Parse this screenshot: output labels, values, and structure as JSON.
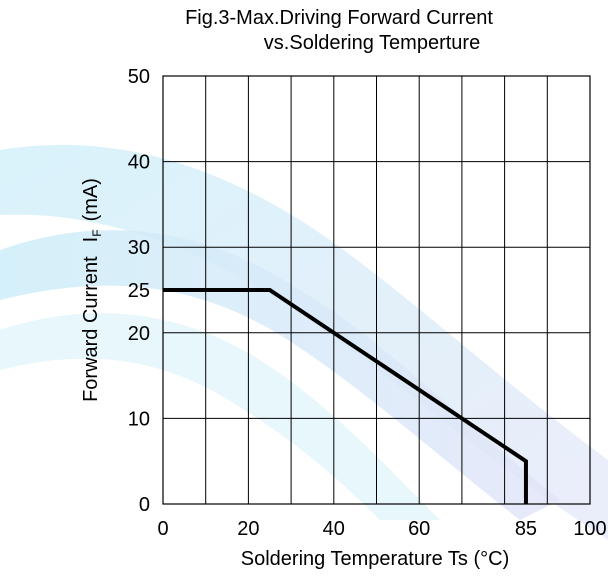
{
  "chart_data": {
    "type": "line",
    "title": "Fig.3-Max.Driving Forward Current",
    "subtitle": "vs.Soldering Temperture",
    "xlabel": "Soldering Temperature Ts (°C)",
    "ylabel": {
      "prefix": "Forward Current",
      "symbol": "I",
      "subscript": "F",
      "unit": "(mA)"
    },
    "xlim": [
      0,
      100
    ],
    "ylim": [
      0,
      50
    ],
    "x_ticks": [
      0,
      20,
      40,
      60,
      85,
      100
    ],
    "y_ticks": [
      0,
      10,
      20,
      25,
      30,
      40,
      50
    ],
    "x_grid": [
      0,
      10,
      20,
      30,
      40,
      50,
      60,
      70,
      80,
      90,
      100
    ],
    "y_grid": [
      0,
      10,
      20,
      30,
      40,
      50
    ],
    "grid": true,
    "series": [
      {
        "x": [
          0,
          25,
          85,
          85
        ],
        "y": [
          25,
          25,
          5,
          0
        ]
      }
    ]
  }
}
